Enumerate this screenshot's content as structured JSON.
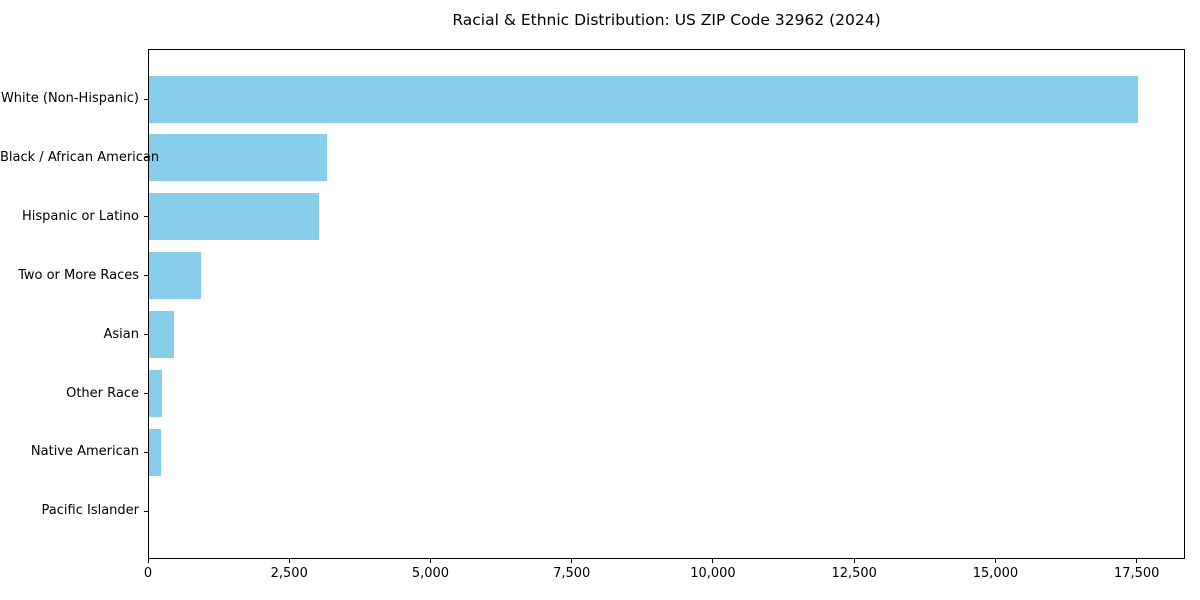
{
  "figure": {
    "title": "Racial & Ethnic Distribution: US ZIP Code 32962 (2024)"
  },
  "chart_data": {
    "type": "bar",
    "orientation": "horizontal",
    "title": "Racial & Ethnic Distribution: US ZIP Code 32962 (2024)",
    "categories": [
      "White (Non-Hispanic)",
      "Black / African American",
      "Hispanic or Latino",
      "Two or More Races",
      "Asian",
      "Other Race",
      "Native American",
      "Pacific Islander"
    ],
    "values": [
      17500,
      3150,
      3010,
      920,
      450,
      230,
      220,
      0
    ],
    "xlabel": "",
    "ylabel": "",
    "xlim": [
      0,
      18355
    ],
    "xticks": [
      0,
      2500,
      5000,
      7500,
      10000,
      12500,
      15000,
      17500
    ],
    "xtick_labels": [
      "0",
      "2,500",
      "5,000",
      "7,500",
      "10,000",
      "12,500",
      "15,000",
      "17,500"
    ],
    "bar_color": "#87CEEB",
    "axis_color": "#000000",
    "text_color": "#000000",
    "background": "#FFFFFF",
    "grid": false,
    "legend": null
  }
}
